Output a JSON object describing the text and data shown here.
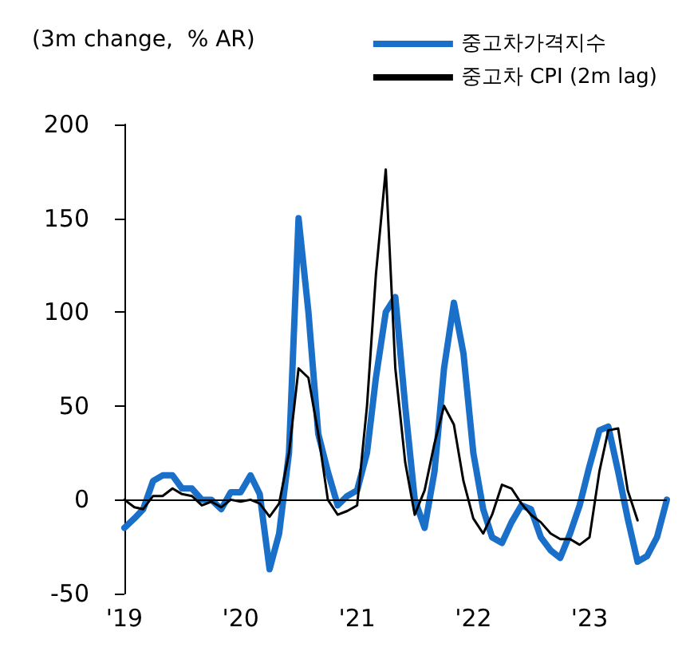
{
  "chart_data": {
    "type": "line",
    "ylabel": "(3m change,  % AR)",
    "legend": "top right",
    "ref_lines": [
      {
        "axis": "y",
        "value": 0,
        "color": "#000000"
      }
    ],
    "marker": "none",
    "line_style": "solid",
    "xlim": [
      "2019-01",
      "2023-09"
    ],
    "ylim": [
      -50,
      200
    ],
    "yticks": [
      -50,
      0,
      50,
      100,
      150,
      200
    ],
    "xticks": [
      {
        "value": "2019-01",
        "label": "'19"
      },
      {
        "value": "2020-01",
        "label": "'20"
      },
      {
        "value": "2021-01",
        "label": "'21"
      },
      {
        "value": "2022-01",
        "label": "'22"
      },
      {
        "value": "2023-01",
        "label": "'23"
      }
    ],
    "series": [
      {
        "name": "중고차가격지수",
        "color": "#1a6fc9",
        "x": [
          "2019-01",
          "2019-02",
          "2019-03",
          "2019-04",
          "2019-05",
          "2019-06",
          "2019-07",
          "2019-08",
          "2019-09",
          "2019-10",
          "2019-11",
          "2019-12",
          "2020-01",
          "2020-02",
          "2020-03",
          "2020-04",
          "2020-05",
          "2020-06",
          "2020-07",
          "2020-08",
          "2020-09",
          "2020-10",
          "2020-11",
          "2020-12",
          "2021-01",
          "2021-02",
          "2021-03",
          "2021-04",
          "2021-05",
          "2021-06",
          "2021-07",
          "2021-08",
          "2021-09",
          "2021-10",
          "2021-11",
          "2021-12",
          "2022-01",
          "2022-02",
          "2022-03",
          "2022-04",
          "2022-05",
          "2022-06",
          "2022-07",
          "2022-08",
          "2022-09",
          "2022-10",
          "2022-11",
          "2022-12",
          "2023-01",
          "2023-02",
          "2023-03",
          "2023-04",
          "2023-05",
          "2023-06",
          "2023-07",
          "2023-08",
          "2023-09"
        ],
        "values": [
          -15,
          -10,
          -5,
          10,
          13,
          13,
          6,
          6,
          0,
          0,
          -5,
          4,
          4,
          13,
          3,
          -37,
          -18,
          25,
          150,
          100,
          35,
          15,
          -3,
          2,
          5,
          25,
          65,
          100,
          108,
          50,
          0,
          -15,
          15,
          70,
          105,
          78,
          25,
          -5,
          -20,
          -23,
          -12,
          -3,
          -5,
          -20,
          -27,
          -31,
          -18,
          -3,
          18,
          37,
          39,
          15,
          -10,
          -33,
          -30,
          -20,
          0
        ]
      },
      {
        "name": "중고차 CPI (2m lag)",
        "color": "#000000",
        "x": [
          "2019-01",
          "2019-02",
          "2019-03",
          "2019-04",
          "2019-05",
          "2019-06",
          "2019-07",
          "2019-08",
          "2019-09",
          "2019-10",
          "2019-11",
          "2019-12",
          "2020-01",
          "2020-02",
          "2020-03",
          "2020-04",
          "2020-05",
          "2020-06",
          "2020-07",
          "2020-08",
          "2020-09",
          "2020-10",
          "2020-11",
          "2020-12",
          "2021-01",
          "2021-02",
          "2021-03",
          "2021-04",
          "2021-05",
          "2021-06",
          "2021-07",
          "2021-08",
          "2021-09",
          "2021-10",
          "2021-11",
          "2021-12",
          "2022-01",
          "2022-02",
          "2022-03",
          "2022-04",
          "2022-05",
          "2022-06",
          "2022-07",
          "2022-08",
          "2022-09",
          "2022-10",
          "2022-11",
          "2022-12",
          "2023-01",
          "2023-02",
          "2023-03",
          "2023-04",
          "2023-05",
          "2023-06"
        ],
        "values": [
          0,
          -4,
          -5,
          2,
          2,
          6,
          3,
          2,
          -3,
          -1,
          -4,
          0,
          -1,
          0,
          -2,
          -9,
          -2,
          25,
          70,
          65,
          35,
          0,
          -8,
          -6,
          -3,
          50,
          120,
          176,
          70,
          20,
          -8,
          5,
          30,
          50,
          40,
          10,
          -10,
          -18,
          -8,
          8,
          6,
          -2,
          -8,
          -12,
          -18,
          -21,
          -21,
          -24,
          -20,
          15,
          37,
          38,
          5,
          -11
        ]
      }
    ]
  }
}
